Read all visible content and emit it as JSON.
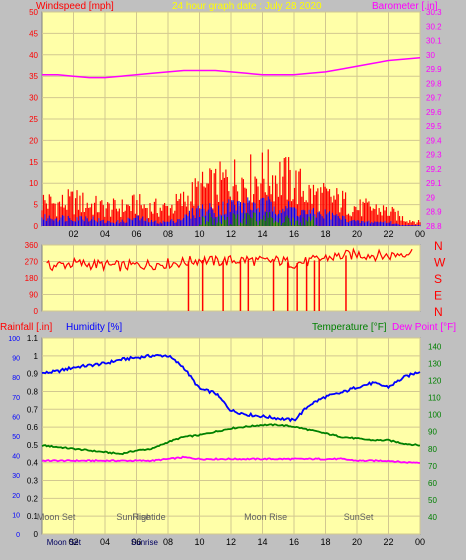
{
  "header": {
    "left_title": "Windspeed [mph]",
    "center_title": "24 hour graph date : July 28 2020",
    "right_title": "Barometer [.in]"
  },
  "lower_header": {
    "rainfall_label": "Rainfall [.in]",
    "humidity_label": "Humidity [%]",
    "temperature_label": "Temperature [°F]",
    "dewpoint_label": "Dew Point [°F]"
  },
  "colors": {
    "background": "#c0c0c0",
    "plot_bg": "#ffffa8",
    "grid": "#d2c890",
    "wind": "#ff0000",
    "gust_low": "#0000ff",
    "wind_green": "#008000",
    "barometer": "#ff00ff",
    "humidity": "#0000ff",
    "temperature": "#008000",
    "dewpoint": "#ff00ff",
    "rain": "#0000ff",
    "direction": "#ff0000"
  },
  "chart_data": [
    {
      "type": "line",
      "name": "wind-barometer",
      "xticks": [
        "02",
        "04",
        "06",
        "08",
        "10",
        "12",
        "14",
        "16",
        "18",
        "20",
        "22",
        "00"
      ],
      "xlim": [
        0,
        24
      ],
      "y_left": {
        "label": "Windspeed [mph]",
        "ylim": [
          0,
          50
        ],
        "ticks": [
          0,
          5,
          10,
          15,
          20,
          25,
          30,
          35,
          40,
          45,
          50
        ]
      },
      "y_right": {
        "label": "Barometer [.in]",
        "ylim": [
          28.8,
          30.3
        ],
        "ticks": [
          "28.8",
          "28.9",
          "29",
          "29.1",
          "29.2",
          "29.3",
          "29.4",
          "29.5",
          "29.6",
          "29.7",
          "29.8",
          "29.9",
          "30",
          "30.1",
          "30.2",
          "30.3"
        ]
      },
      "series": [
        {
          "name": "Barometer",
          "axis": "right",
          "x": [
            0,
            1,
            2,
            3,
            4,
            5,
            6,
            7,
            8,
            9,
            10,
            11,
            12,
            13,
            14,
            15,
            16,
            17,
            18,
            19,
            20,
            21,
            22,
            23,
            24
          ],
          "values": [
            29.86,
            29.86,
            29.85,
            29.84,
            29.84,
            29.85,
            29.86,
            29.87,
            29.88,
            29.89,
            29.89,
            29.89,
            29.88,
            29.87,
            29.86,
            29.86,
            29.86,
            29.87,
            29.88,
            29.9,
            29.92,
            29.94,
            29.96,
            29.97,
            29.98
          ]
        },
        {
          "name": "Wind gust",
          "axis": "left",
          "x": [
            0,
            1,
            2,
            3,
            4,
            5,
            6,
            7,
            8,
            9,
            10,
            11,
            12,
            13,
            14,
            15,
            16,
            17,
            18,
            19,
            20,
            21,
            22,
            23,
            24
          ],
          "values": [
            7,
            6,
            7,
            6,
            5,
            5,
            6,
            5,
            5,
            7,
            10,
            11,
            13,
            13,
            14,
            14,
            12,
            9,
            8,
            7,
            5,
            5,
            4,
            2,
            1
          ]
        },
        {
          "name": "Average wind",
          "axis": "left",
          "x": [
            0,
            1,
            2,
            3,
            4,
            5,
            6,
            7,
            8,
            9,
            10,
            11,
            12,
            13,
            14,
            15,
            16,
            17,
            18,
            19,
            20,
            21,
            22,
            23,
            24
          ],
          "values": [
            2,
            2,
            2,
            2,
            1,
            1,
            2,
            1,
            1,
            2,
            4,
            4,
            5,
            5,
            5,
            5,
            4,
            3,
            3,
            2,
            1,
            1,
            1,
            0,
            0
          ]
        }
      ]
    },
    {
      "type": "line",
      "name": "wind-direction",
      "xlim": [
        0,
        24
      ],
      "y_left": {
        "ylim": [
          0,
          360
        ],
        "ticks": [
          0,
          90,
          180,
          270,
          360
        ]
      },
      "y_right_labels": [
        "N",
        "W",
        "S",
        "E",
        "N"
      ],
      "series": [
        {
          "name": "Wind direction",
          "x": [
            0,
            1,
            2,
            3,
            4,
            5,
            6,
            7,
            8,
            9,
            10,
            11,
            12,
            13,
            14,
            15,
            16,
            17,
            18,
            19,
            20,
            21,
            22,
            23,
            24
          ],
          "values": [
            240,
            250,
            260,
            255,
            250,
            245,
            250,
            255,
            260,
            265,
            280,
            270,
            275,
            280,
            270,
            275,
            260,
            270,
            290,
            300,
            310,
            305,
            300,
            320,
            320
          ]
        }
      ]
    },
    {
      "type": "line",
      "name": "rain-humidity-temperature",
      "xticks": [
        "02",
        "04",
        "06",
        "08",
        "10",
        "12",
        "14",
        "16",
        "18",
        "20",
        "22",
        "00"
      ],
      "xlim": [
        0,
        24
      ],
      "y_rain": {
        "label": "Rainfall [.in]",
        "ylim": [
          0,
          1.1
        ],
        "ticks": [
          "0",
          "0.1",
          "0.2",
          "0.3",
          "0.4",
          "0.5",
          "0.6",
          "0.7",
          "0.8",
          "0.9",
          "1",
          "1.1"
        ]
      },
      "y_humidity": {
        "label": "Humidity [%]",
        "ylim": [
          0,
          100
        ],
        "ticks": [
          0,
          10,
          20,
          30,
          40,
          50,
          60,
          70,
          80,
          90,
          100
        ]
      },
      "y_temp": {
        "label": "Temperature [°F]",
        "ylim": [
          30,
          145
        ],
        "ticks": [
          40,
          50,
          60,
          70,
          80,
          90,
          100,
          110,
          120,
          130,
          140
        ]
      },
      "series": [
        {
          "name": "Humidity",
          "x": [
            0,
            1,
            2,
            3,
            4,
            5,
            6,
            7,
            8,
            9,
            10,
            11,
            12,
            13,
            14,
            15,
            16,
            17,
            18,
            19,
            20,
            21,
            22,
            23,
            24
          ],
          "values": [
            82,
            83,
            85,
            86,
            87,
            89,
            90,
            91,
            91,
            85,
            74,
            72,
            63,
            61,
            60,
            59,
            58,
            66,
            70,
            72,
            75,
            77,
            75,
            80,
            83
          ]
        },
        {
          "name": "Temperature",
          "x": [
            0,
            1,
            2,
            3,
            4,
            5,
            6,
            7,
            8,
            9,
            10,
            11,
            12,
            13,
            14,
            15,
            16,
            17,
            18,
            19,
            20,
            21,
            22,
            23,
            24
          ],
          "values": [
            82,
            81,
            80,
            79,
            78,
            77,
            79,
            80,
            84,
            87,
            88,
            90,
            92,
            93,
            94,
            94,
            93,
            91,
            89,
            87,
            86,
            85,
            85,
            83,
            82
          ]
        },
        {
          "name": "Dew Point",
          "x": [
            0,
            1,
            2,
            3,
            4,
            5,
            6,
            7,
            8,
            9,
            10,
            11,
            12,
            13,
            14,
            15,
            16,
            17,
            18,
            19,
            20,
            21,
            22,
            23,
            24
          ],
          "values": [
            73,
            73,
            73,
            73,
            73,
            73,
            73,
            73,
            74,
            75,
            74,
            74,
            74,
            74,
            74,
            74,
            74,
            74,
            74,
            74,
            73,
            73,
            73,
            72,
            72
          ]
        }
      ],
      "annotations": [
        {
          "text": "Moon Set",
          "x": 0.9
        },
        {
          "text": "SunRise",
          "x": 5.8
        },
        {
          "text": "Hightide",
          "x": 6.8
        },
        {
          "text": "Moon Rise",
          "x": 14.2
        },
        {
          "text": "SunSet",
          "x": 20.1
        }
      ],
      "bottom_labels": [
        "Moon Set",
        "Sunrise"
      ]
    }
  ]
}
